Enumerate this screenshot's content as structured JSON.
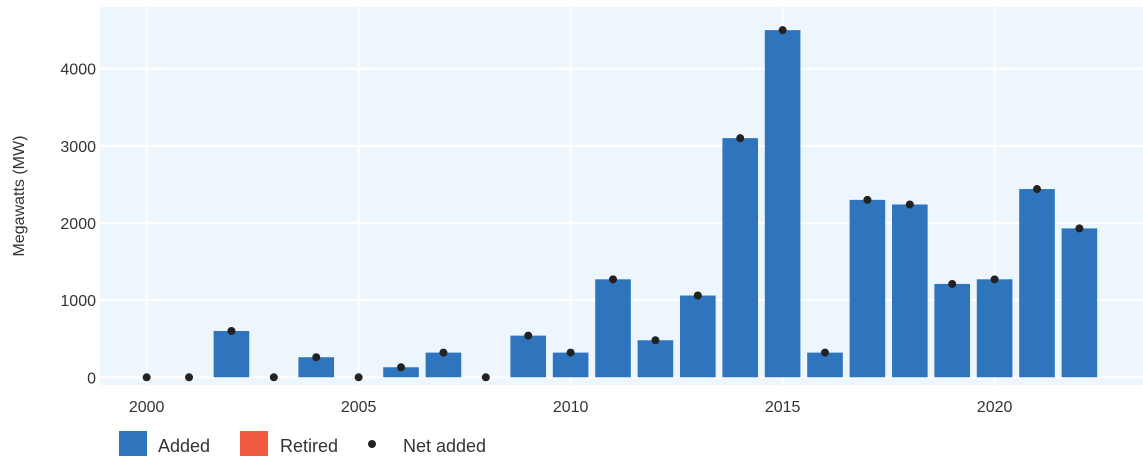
{
  "chart_data": {
    "type": "bar",
    "title": "",
    "xlabel": "",
    "ylabel": "Megawatts (MW)",
    "ylim": [
      -100,
      4800
    ],
    "xlim": [
      1998.9,
      2023.5
    ],
    "x_ticks": [
      2000,
      2005,
      2010,
      2015,
      2020
    ],
    "y_ticks": [
      0,
      1000,
      2000,
      3000,
      4000
    ],
    "grid": true,
    "legend_position": "bottom-left",
    "x": [
      2000,
      2001,
      2002,
      2003,
      2004,
      2005,
      2006,
      2007,
      2008,
      2009,
      2010,
      2011,
      2012,
      2013,
      2014,
      2015,
      2016,
      2017,
      2018,
      2019,
      2020,
      2021,
      2022
    ],
    "series": [
      {
        "name": "Added",
        "type": "bar",
        "values": [
          0,
          0,
          600,
          0,
          260,
          0,
          130,
          320,
          0,
          540,
          320,
          1270,
          480,
          1060,
          3100,
          4500,
          320,
          2300,
          2240,
          1210,
          1270,
          2440,
          1930
        ]
      },
      {
        "name": "Retired",
        "type": "bar",
        "values": [
          0,
          0,
          0,
          0,
          0,
          0,
          0,
          0,
          0,
          0,
          0,
          0,
          0,
          0,
          0,
          0,
          0,
          0,
          0,
          0,
          0,
          0,
          0
        ]
      },
      {
        "name": "Net added",
        "type": "scatter",
        "values": [
          0,
          0,
          600,
          0,
          260,
          0,
          130,
          320,
          0,
          540,
          320,
          1270,
          480,
          1060,
          3100,
          4500,
          320,
          2300,
          2240,
          1210,
          1270,
          2440,
          1930
        ]
      }
    ],
    "colors": {
      "added": "#2e75bd",
      "retired": "#f05a40",
      "net": "#222222",
      "plot_bg": "#eef6fd",
      "grid": "#ffffff"
    }
  }
}
